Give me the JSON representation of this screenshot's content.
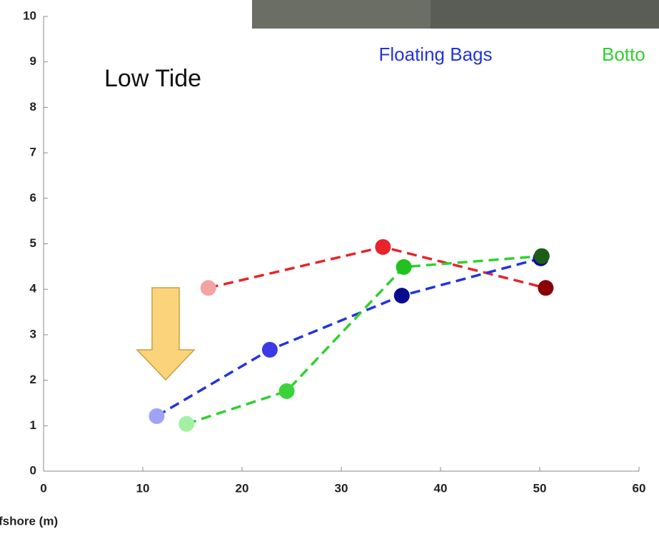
{
  "chart_data": {
    "type": "line",
    "xlabel": "fshore (m)",
    "annotations": [
      "Low Tide"
    ],
    "xlim": [
      0,
      60
    ],
    "xticks": [
      0,
      10,
      20,
      30,
      40,
      50,
      60
    ],
    "ylim": [
      0,
      10
    ],
    "yticks": [
      0,
      1,
      2,
      3,
      4,
      5,
      6,
      7,
      8,
      9,
      10
    ],
    "line_style": "dashed",
    "series": [
      {
        "color": "#e8232a",
        "x": [
          16.6,
          34.2,
          50.6
        ],
        "values": [
          4.03,
          4.93,
          4.03
        ],
        "marker_colors": [
          "#f4a3a3",
          "#e8232a",
          "#8b0000"
        ]
      },
      {
        "name": "Floating Bags",
        "color": "#2233e0",
        "x": [
          11.4,
          22.8,
          36.1,
          50.1
        ],
        "values": [
          1.21,
          2.67,
          3.86,
          4.68
        ],
        "marker_colors": [
          "#a0a3f5",
          "#3a3ae6",
          "#0a0a8f",
          "#0a0a8f"
        ]
      },
      {
        "name": "Botto",
        "color": "#2fd02f",
        "x": [
          14.4,
          24.5,
          36.3,
          50.2
        ],
        "values": [
          1.04,
          1.76,
          4.49,
          4.73
        ],
        "marker_colors": [
          "#a3f0a3",
          "#3ad43a",
          "#1fc21f",
          "#1a5e1a"
        ]
      }
    ]
  }
}
